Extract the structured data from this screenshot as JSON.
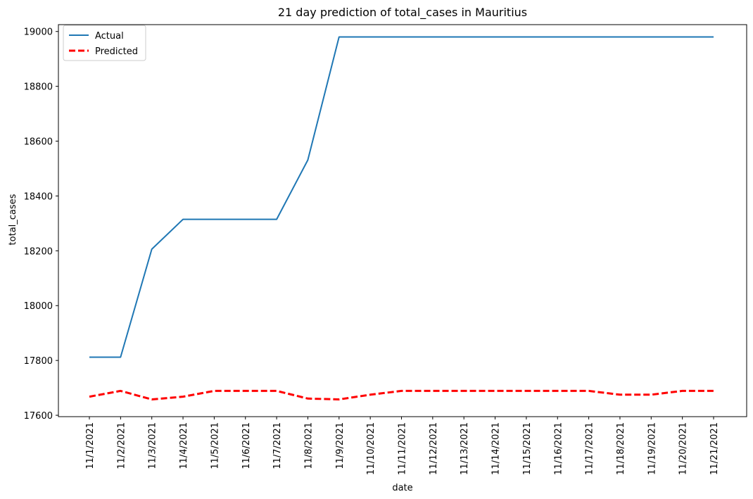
{
  "chart_data": {
    "type": "line",
    "title": "21 day prediction of total_cases in Mauritius",
    "xlabel": "date",
    "ylabel": "total_cases",
    "x": [
      "11/1/2021",
      "11/2/2021",
      "11/3/2021",
      "11/4/2021",
      "11/5/2021",
      "11/6/2021",
      "11/7/2021",
      "11/8/2021",
      "11/9/2021",
      "11/10/2021",
      "11/11/2021",
      "11/12/2021",
      "11/13/2021",
      "11/14/2021",
      "11/15/2021",
      "11/16/2021",
      "11/17/2021",
      "11/18/2021",
      "11/19/2021",
      "11/20/2021",
      "11/21/2021"
    ],
    "ylim": [
      17595,
      19025
    ],
    "yticks": [
      17600,
      17800,
      18000,
      18200,
      18400,
      18600,
      18800,
      19000
    ],
    "grid": false,
    "legend_position": "top-left",
    "series": [
      {
        "name": "Actual",
        "color": "#1f77b4",
        "style": "solid",
        "values": [
          17812,
          17812,
          18206,
          18315,
          18315,
          18315,
          18315,
          18531,
          18980,
          18980,
          18980,
          18980,
          18980,
          18980,
          18980,
          18980,
          18980,
          18980,
          18980,
          18980,
          18980
        ]
      },
      {
        "name": "Predicted",
        "color": "#ff0000",
        "style": "dashed",
        "values": [
          17668,
          17689,
          17658,
          17668,
          17689,
          17689,
          17689,
          17661,
          17658,
          17675,
          17689,
          17689,
          17689,
          17689,
          17689,
          17689,
          17689,
          17675,
          17675,
          17689,
          17689
        ]
      }
    ]
  }
}
